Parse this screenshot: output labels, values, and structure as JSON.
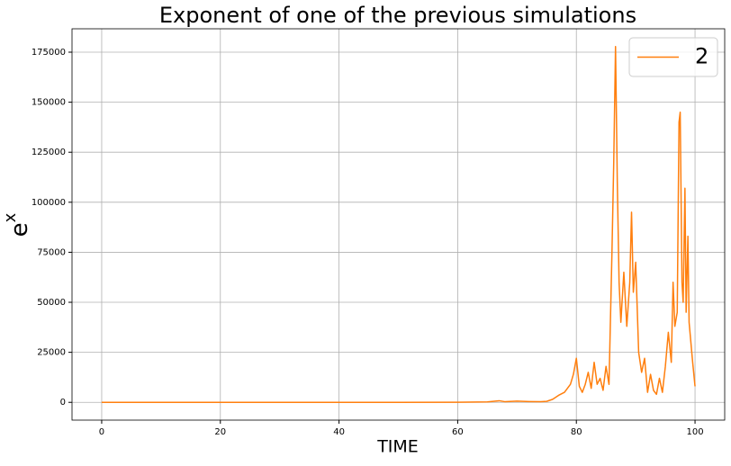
{
  "chart_data": {
    "type": "line",
    "title": "Exponent of one of the previous simulations",
    "xlabel": "TIME",
    "ylabel": {
      "base": "e",
      "exponent": "x"
    },
    "x": [
      0,
      10,
      20,
      30,
      40,
      50,
      60,
      65,
      67,
      68,
      70,
      72,
      74,
      75,
      76,
      77,
      78,
      79,
      79.5,
      80,
      80.5,
      81,
      81.5,
      82,
      82.5,
      83,
      83.5,
      84,
      84.5,
      85,
      85.5,
      86,
      86.3,
      86.6,
      86.9,
      87.2,
      87.5,
      88,
      88.5,
      89,
      89.3,
      89.6,
      90,
      90.5,
      91,
      91.5,
      92,
      92.5,
      93,
      93.5,
      94,
      94.5,
      95,
      95.5,
      96,
      96.3,
      96.6,
      97,
      97.3,
      97.5,
      97.8,
      98,
      98.3,
      98.5,
      98.8,
      99,
      99.3,
      99.6,
      100
    ],
    "series": [
      {
        "name": "2",
        "color": "#ff7f0e",
        "values": [
          1,
          1,
          2,
          3,
          5,
          10,
          50,
          200,
          800,
          300,
          600,
          400,
          300,
          500,
          1500,
          3500,
          5000,
          9000,
          14000,
          22000,
          8000,
          5000,
          9000,
          15000,
          7000,
          20000,
          9000,
          12000,
          6000,
          18000,
          9000,
          75000,
          120000,
          177800,
          110000,
          60000,
          40000,
          65000,
          38000,
          60000,
          95000,
          55000,
          70000,
          25000,
          15000,
          22000,
          5000,
          14000,
          6000,
          4000,
          12000,
          5000,
          18000,
          35000,
          20000,
          60000,
          38000,
          45000,
          140000,
          145000,
          60000,
          50000,
          107000,
          45000,
          83000,
          40000,
          30000,
          20000,
          8000
        ]
      }
    ],
    "xlim": [
      -5,
      105
    ],
    "xticks": [
      0,
      20,
      40,
      60,
      80,
      100
    ],
    "ylim": [
      -8890,
      186690
    ],
    "yticks": [
      0,
      25000,
      50000,
      75000,
      100000,
      125000,
      150000,
      175000
    ],
    "grid": true,
    "legend": "upper right"
  }
}
